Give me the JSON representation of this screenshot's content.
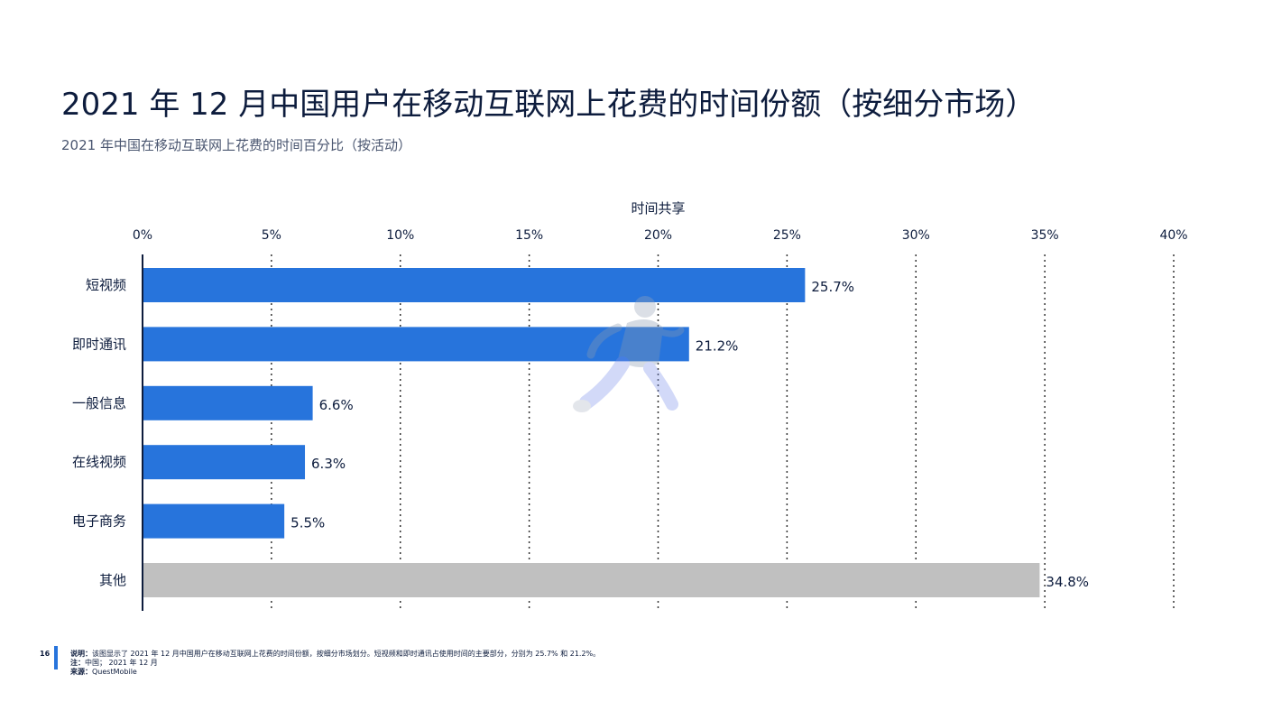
{
  "header": {
    "title": "2021 年 12 月中国用户在移动互联网上花费的时间份额（按细分市场）",
    "subtitle": "2021 年中国在移动互联网上花费的时间百分比（按活动）"
  },
  "chart_data": {
    "type": "bar",
    "orientation": "horizontal",
    "xlabel": "时间共享",
    "xlim": [
      0,
      40
    ],
    "x_ticks": [
      "0%",
      "5%",
      "10%",
      "15%",
      "20%",
      "25%",
      "30%",
      "35%",
      "40%"
    ],
    "x_tick_values": [
      0,
      5,
      10,
      15,
      20,
      25,
      30,
      35,
      40
    ],
    "grid": "vertical dotted",
    "categories": [
      "短视频",
      "即时通讯",
      "一般信息",
      "在线视频",
      "电子商务",
      "其他"
    ],
    "values": [
      25.7,
      21.2,
      6.6,
      6.3,
      5.5,
      34.8
    ],
    "value_labels": [
      "25.7%",
      "21.2%",
      "6.6%",
      "6.3%",
      "5.5%",
      "34.8%"
    ],
    "bar_colors": [
      "#2774dc",
      "#2774dc",
      "#2774dc",
      "#2774dc",
      "#2774dc",
      "#c0c0c0"
    ]
  },
  "footer": {
    "page_number": "16",
    "description_label": "说明：",
    "description_text": "该图显示了 2021 年 12 月中国用户在移动互联网上花费的时间份额，按细分市场划分。短视频和即时通讯占使用时间的主要部分，分别为 25.7% 和 21.2%。",
    "note_label": "注：",
    "note_text": "中国； 2021 年 12 月",
    "source_label": "来源：",
    "source_text": "QuestMobile"
  }
}
